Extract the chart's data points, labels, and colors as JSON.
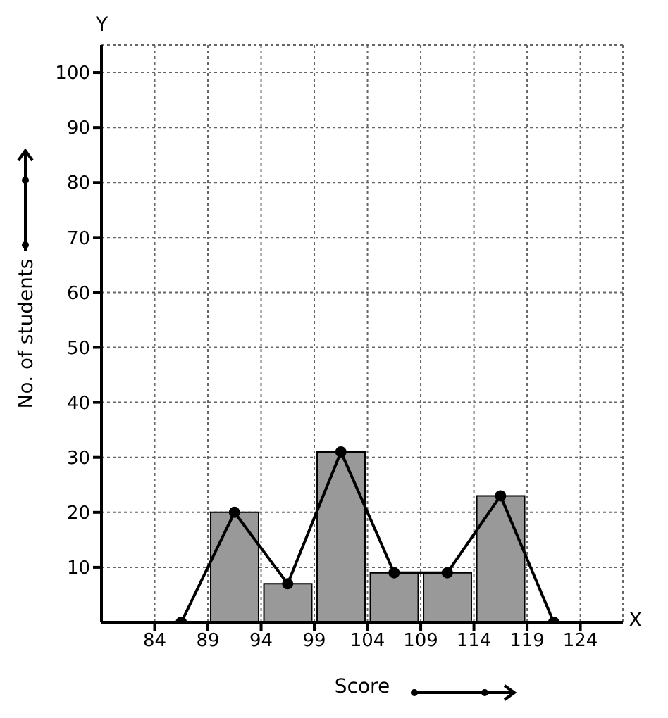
{
  "chart_data": {
    "type": "histogram",
    "xlabel": "Score",
    "ylabel": "No. of students",
    "annotations": [
      "X",
      "Y"
    ],
    "bins": [
      89,
      94,
      99,
      104,
      109,
      114,
      119
    ],
    "series": [
      {
        "color": "#999999",
        "values": [
          20,
          7,
          31,
          9,
          9,
          23
        ]
      },
      {
        "type": "line",
        "color": "#000000",
        "x": [
          86.5,
          91.5,
          96.5,
          101.5,
          106.5,
          111.5,
          116.5,
          121.5
        ],
        "values": [
          0,
          20,
          7,
          31,
          9,
          9,
          23,
          0
        ]
      }
    ],
    "marker": "circle",
    "line_style": "solid",
    "grid": true,
    "legend": false,
    "xlim": [
      79,
      128
    ],
    "xticks": [
      84,
      89,
      94,
      99,
      104,
      109,
      114,
      119,
      124
    ],
    "ylim": [
      0,
      105
    ],
    "yticks": [
      10,
      20,
      30,
      40,
      50,
      60,
      70,
      80,
      90,
      100
    ]
  }
}
